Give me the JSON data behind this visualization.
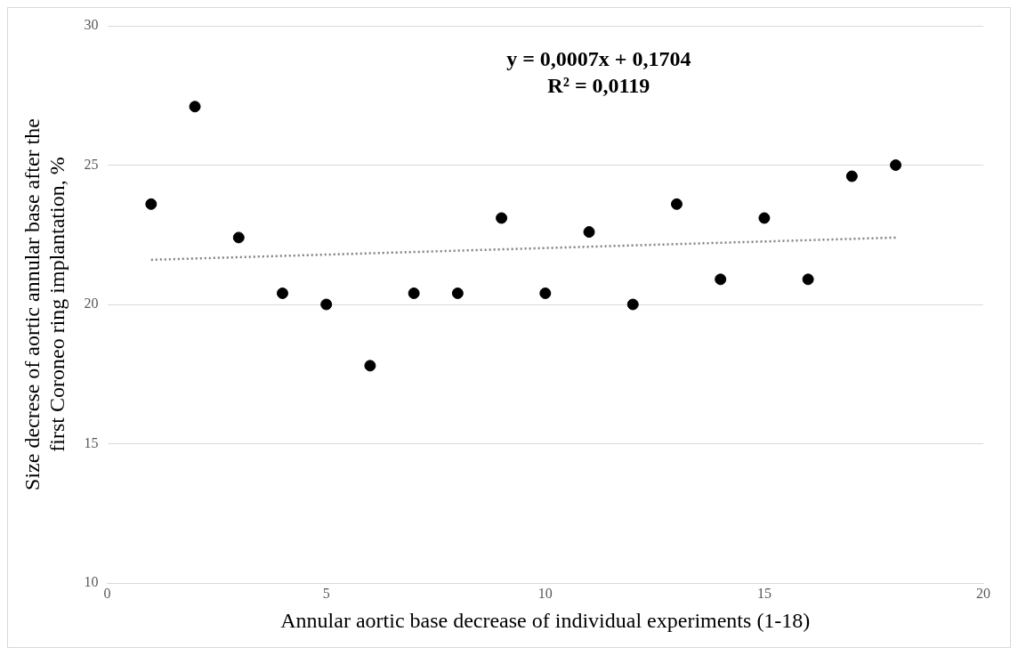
{
  "chart_data": {
    "type": "scatter",
    "xlabel": "Annular aortic base decrease of individual experiments (1-18)",
    "ylabel": "Size decrese of aortic annular base after the first Coroneo ring implantation, %",
    "annotations": [
      "y = 0,0007x + 0,1704",
      "R² = 0,0119"
    ],
    "xlim": [
      0,
      20
    ],
    "xticks": [
      0,
      5,
      10,
      15,
      20
    ],
    "ylim": [
      10,
      30
    ],
    "yticks": [
      10,
      15,
      20,
      25,
      30
    ],
    "grid": "y",
    "series": [
      {
        "marker": "circle",
        "color": "#000000",
        "x": [
          1,
          2,
          3,
          4,
          5,
          6,
          7,
          8,
          9,
          10,
          11,
          12,
          13,
          14,
          15,
          16,
          17,
          18
        ],
        "values": [
          23.6,
          27.1,
          22.4,
          20.4,
          20.0,
          17.8,
          20.4,
          20.4,
          23.1,
          20.4,
          22.6,
          20.0,
          23.6,
          20.9,
          23.1,
          20.9,
          24.6,
          25.0
        ]
      },
      {
        "type": "line",
        "marker": "none",
        "color": "#808080",
        "line_style": "dotted",
        "x": [
          1,
          18
        ],
        "values": [
          21.6,
          22.4
        ]
      }
    ]
  }
}
